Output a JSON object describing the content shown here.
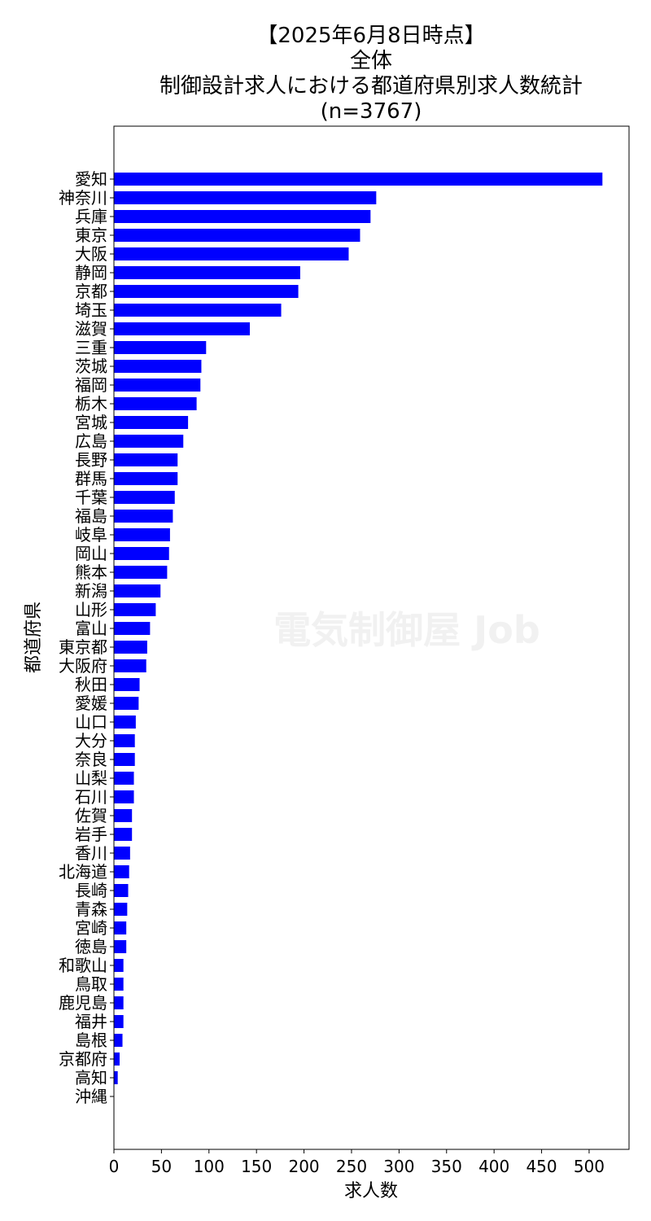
{
  "watermark": "電気制御屋 Job",
  "chart_data": {
    "type": "bar",
    "orientation": "horizontal",
    "title_lines": [
      "【2025年6月8日時点】",
      "全体",
      "制御設計求人における都道府県別求人数統計",
      "(n=3767)"
    ],
    "xlabel": "求人数",
    "ylabel": "都道府県",
    "xlim": [
      0,
      542
    ],
    "xticks": [
      0,
      50,
      100,
      150,
      200,
      250,
      300,
      350,
      400,
      450,
      500
    ],
    "grid": false,
    "bar_color": "#0000ff",
    "categories": [
      "愛知",
      "神奈川",
      "兵庫",
      "東京",
      "大阪",
      "静岡",
      "京都",
      "埼玉",
      "滋賀",
      "三重",
      "茨城",
      "福岡",
      "栃木",
      "宮城",
      "広島",
      "長野",
      "群馬",
      "千葉",
      "福島",
      "岐阜",
      "岡山",
      "熊本",
      "新潟",
      "山形",
      "富山",
      "東京都",
      "大阪府",
      "秋田",
      "愛媛",
      "山口",
      "大分",
      "奈良",
      "山梨",
      "石川",
      "佐賀",
      "岩手",
      "香川",
      "北海道",
      "長崎",
      "青森",
      "宮崎",
      "徳島",
      "和歌山",
      "鳥取",
      "鹿児島",
      "福井",
      "島根",
      "京都府",
      "高知",
      "沖縄"
    ],
    "values": [
      514,
      276,
      270,
      259,
      247,
      196,
      194,
      176,
      143,
      97,
      92,
      91,
      87,
      78,
      73,
      67,
      67,
      64,
      62,
      59,
      58,
      56,
      49,
      44,
      38,
      35,
      34,
      27,
      26,
      23,
      22,
      22,
      21,
      21,
      19,
      19,
      17,
      16,
      15,
      14,
      13,
      13,
      10,
      10,
      10,
      10,
      9,
      6,
      4,
      0
    ]
  }
}
